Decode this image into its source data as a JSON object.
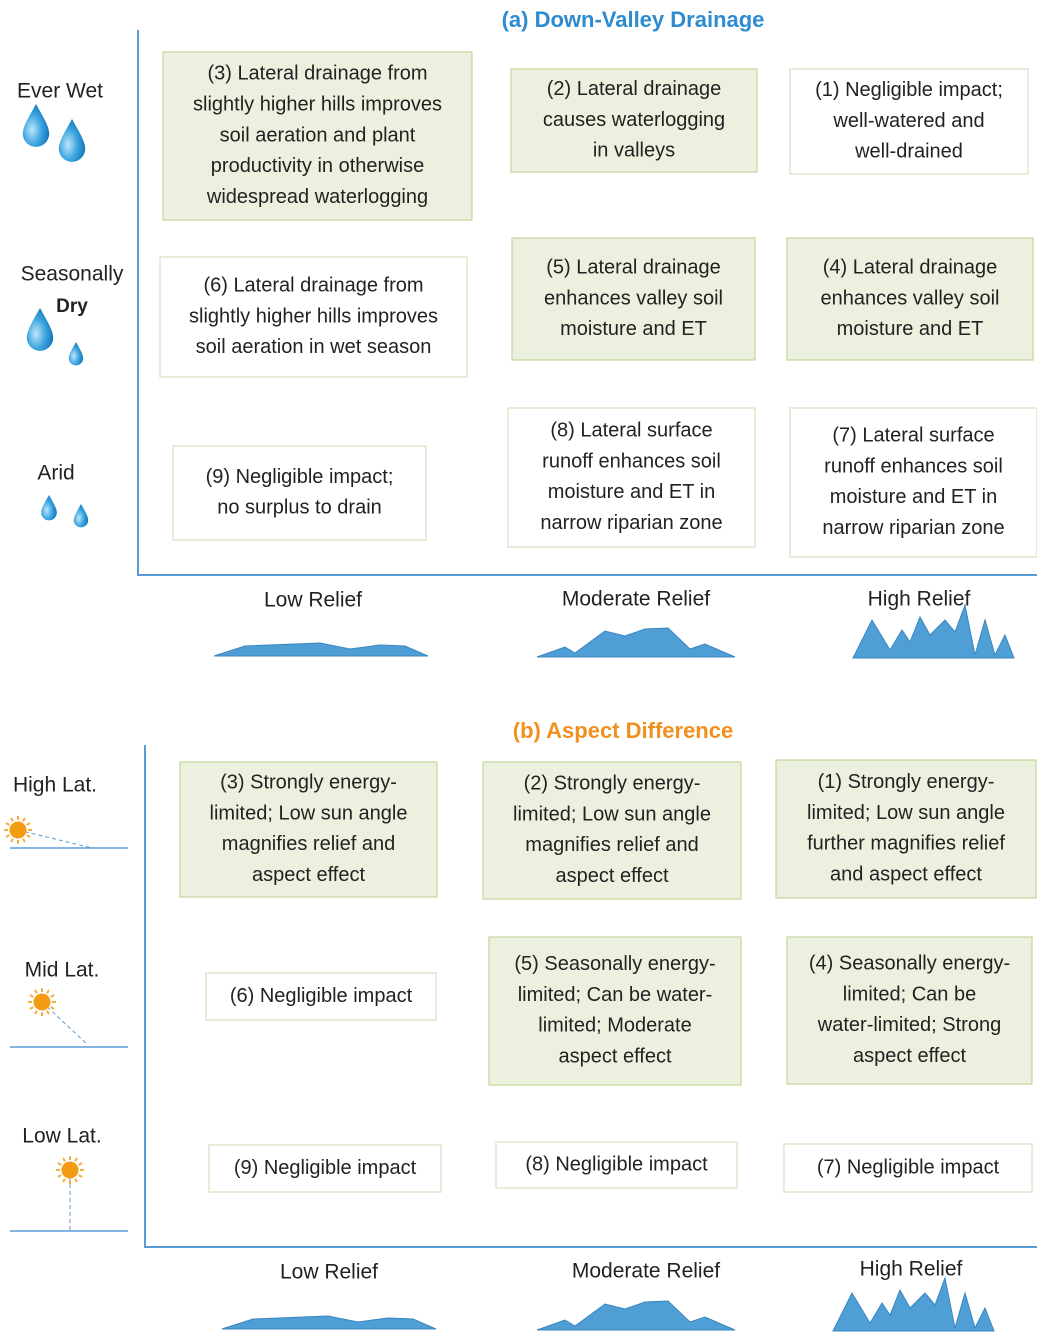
{
  "panels": [
    {
      "title": "(a) Down-Valley Drainage",
      "rows": [
        [
          "Ever Wet"
        ],
        [
          "Seasonally",
          "Dry"
        ],
        [
          "Arid"
        ]
      ],
      "columns": [
        "Low Relief",
        "Moderate Relief",
        "High Relief"
      ],
      "boxes": [
        [
          "(3) Lateral drainage from",
          "slightly higher hills improves",
          "soil aeration and plant",
          "productivity in otherwise",
          "widespread waterlogging"
        ],
        [
          "(2) Lateral drainage",
          "causes waterlogging",
          "in valleys"
        ],
        [
          "(1) Negligible impact;",
          "well-watered and",
          "well-drained"
        ],
        [
          "(6) Lateral drainage from",
          "slightly higher hills improves",
          "soil aeration in wet season"
        ],
        [
          "(5) Lateral drainage",
          "enhances valley soil",
          "moisture and ET"
        ],
        [
          "(4) Lateral drainage",
          "enhances valley soil",
          "moisture and ET"
        ],
        [
          "(9) Negligible impact;",
          "no surplus to drain"
        ],
        [
          "(8) Lateral surface",
          "runoff enhances soil",
          "moisture and ET in",
          "narrow riparian zone"
        ],
        [
          "(7) Lateral surface",
          "runoff enhances soil",
          "moisture and ET in",
          "narrow riparian zone"
        ]
      ]
    },
    {
      "title": "(b) Aspect Difference",
      "rows": [
        [
          "High Lat."
        ],
        [
          "Mid Lat."
        ],
        [
          "Low Lat."
        ]
      ],
      "columns": [
        "Low Relief",
        "Moderate Relief",
        "High Relief"
      ],
      "boxes": [
        [
          "(3) Strongly energy-",
          "limited; Low sun angle",
          "magnifies relief and",
          "aspect effect"
        ],
        [
          "(2) Strongly energy-",
          "limited; Low sun angle",
          "magnifies relief and",
          "aspect effect"
        ],
        [
          "(1) Strongly energy-",
          "limited; Low sun angle",
          "further magnifies relief",
          "and aspect effect"
        ],
        [
          "(6) Negligible impact"
        ],
        [
          "(5) Seasonally energy-",
          "limited; Can be water-",
          "limited; Moderate",
          "aspect effect"
        ],
        [
          "(4) Seasonally energy-",
          "limited; Can be",
          "water-limited; Strong",
          "aspect effect"
        ],
        [
          "(9) Negligible impact"
        ],
        [
          "(8) Negligible impact"
        ],
        [
          "(7) Negligible impact"
        ]
      ]
    }
  ]
}
